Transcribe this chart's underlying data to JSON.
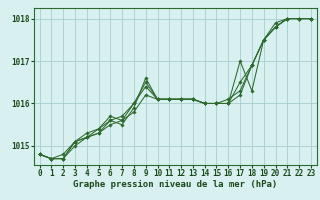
{
  "title": "Graphe pression niveau de la mer (hPa)",
  "xlabel_hours": [
    0,
    1,
    2,
    3,
    4,
    5,
    6,
    7,
    8,
    9,
    10,
    11,
    12,
    13,
    14,
    15,
    16,
    17,
    18,
    19,
    20,
    21,
    22,
    23
  ],
  "series": [
    [
      1014.8,
      1014.7,
      1014.7,
      1015.0,
      1015.2,
      1015.3,
      1015.5,
      1015.6,
      1015.8,
      1016.2,
      1016.1,
      1016.1,
      1016.1,
      1016.1,
      1016.0,
      1016.0,
      1016.0,
      1016.2,
      1016.9,
      1017.5,
      1017.8,
      1018.0,
      1018.0,
      1018.0
    ],
    [
      1014.8,
      1014.7,
      1014.7,
      1015.1,
      1015.2,
      1015.4,
      1015.6,
      1015.7,
      1016.0,
      1016.5,
      1016.1,
      1016.1,
      1016.1,
      1016.1,
      1016.0,
      1016.0,
      1016.0,
      1017.0,
      1016.3,
      1017.5,
      1017.8,
      1018.0,
      1018.0,
      1018.0
    ],
    [
      1014.8,
      1014.7,
      1014.7,
      1015.1,
      1015.2,
      1015.3,
      1015.6,
      1015.5,
      1015.9,
      1016.6,
      1016.1,
      1016.1,
      1016.1,
      1016.1,
      1016.0,
      1016.0,
      1016.1,
      1016.3,
      1016.9,
      1017.5,
      1017.8,
      1018.0,
      1018.0,
      1018.0
    ],
    [
      1014.8,
      1014.7,
      1014.8,
      1015.1,
      1015.3,
      1015.4,
      1015.7,
      1015.6,
      1016.0,
      1016.4,
      1016.1,
      1016.1,
      1016.1,
      1016.1,
      1016.0,
      1016.0,
      1016.0,
      1016.5,
      1016.9,
      1017.5,
      1017.9,
      1018.0,
      1018.0,
      1018.0
    ]
  ],
  "line_color": "#2d6a2d",
  "marker_color": "#2d6a2d",
  "bg_color": "#d8f0f0",
  "grid_color": "#a8cece",
  "label_color": "#1a3a1a",
  "ylim": [
    1014.55,
    1018.25
  ],
  "yticks": [
    1015,
    1016,
    1017,
    1018
  ],
  "text_color": "#1a4a1a",
  "title_fontsize": 6.5,
  "tick_fontsize": 5.5
}
